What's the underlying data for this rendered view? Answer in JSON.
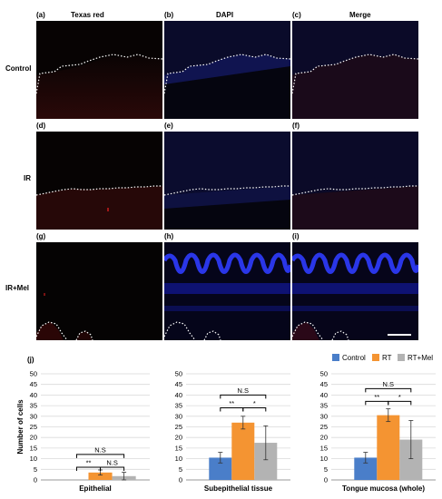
{
  "figure": {
    "column_titles": [
      "Texas red",
      "DAPI",
      "Merge"
    ],
    "row_labels": [
      "Control",
      "IR",
      "IR+Mel"
    ],
    "panel_letters": [
      "(a)",
      "(b)",
      "(c)",
      "(d)",
      "(e)",
      "(f)",
      "(g)",
      "(h)",
      "(i)"
    ],
    "section_j_label": "(j)"
  },
  "legend": {
    "items": [
      {
        "label": "Control",
        "color": "#4a7ec9"
      },
      {
        "label": "RT",
        "color": "#f49432"
      },
      {
        "label": "RT+Mel",
        "color": "#b3b3b3"
      }
    ]
  },
  "chart_data": [
    {
      "type": "bar",
      "title": "",
      "xlabel": "Epithelial",
      "ylabel": "Number of cells",
      "ylim": [
        0,
        50
      ],
      "yticks": [
        "0",
        "5",
        "10",
        "15",
        "20",
        "25",
        "30",
        "35",
        "40",
        "45",
        "50"
      ],
      "grid": true,
      "categories": [
        "Control",
        "RT",
        "RT+Mel"
      ],
      "values": [
        0,
        3.5,
        1.8
      ],
      "errors": [
        0,
        1.2,
        1.8
      ],
      "colors": [
        "#4a7ec9",
        "#f49432",
        "#b3b3b3"
      ],
      "annotations": [
        {
          "text": "N.S",
          "from": 0,
          "to": 2,
          "level": 12
        },
        {
          "text": "**",
          "from": 0,
          "to": 1,
          "level": 6
        },
        {
          "text": "N.S",
          "from": 1,
          "to": 2,
          "level": 6
        }
      ]
    },
    {
      "type": "bar",
      "title": "",
      "xlabel": "Subepithelial tissue",
      "ylabel": "",
      "ylim": [
        0,
        50
      ],
      "yticks": [
        "0",
        "5",
        "10",
        "15",
        "20",
        "25",
        "30",
        "35",
        "40",
        "45",
        "50"
      ],
      "grid": true,
      "categories": [
        "Control",
        "RT",
        "RT+Mel"
      ],
      "values": [
        10.5,
        27,
        17.5
      ],
      "errors": [
        2.5,
        3,
        8
      ],
      "colors": [
        "#4a7ec9",
        "#f49432",
        "#b3b3b3"
      ],
      "annotations": [
        {
          "text": "N.S",
          "from": 0,
          "to": 2,
          "level": 40
        },
        {
          "text": "**",
          "from": 0,
          "to": 1,
          "level": 34
        },
        {
          "text": "*",
          "from": 1,
          "to": 2,
          "level": 34
        }
      ]
    },
    {
      "type": "bar",
      "title": "",
      "xlabel": "Tongue mucosa (whole)",
      "ylabel": "",
      "ylim": [
        0,
        50
      ],
      "yticks": [
        "0",
        "5",
        "10",
        "15",
        "20",
        "25",
        "30",
        "35",
        "40",
        "45",
        "50"
      ],
      "grid": true,
      "categories": [
        "Control",
        "RT",
        "RT+Mel"
      ],
      "values": [
        10.5,
        30.5,
        19
      ],
      "errors": [
        2.5,
        3,
        9
      ],
      "colors": [
        "#4a7ec9",
        "#f49432",
        "#b3b3b3"
      ],
      "annotations": [
        {
          "text": "N.S",
          "from": 0,
          "to": 2,
          "level": 43
        },
        {
          "text": "**",
          "from": 0,
          "to": 1,
          "level": 37
        },
        {
          "text": "*",
          "from": 1,
          "to": 2,
          "level": 37
        }
      ]
    }
  ]
}
